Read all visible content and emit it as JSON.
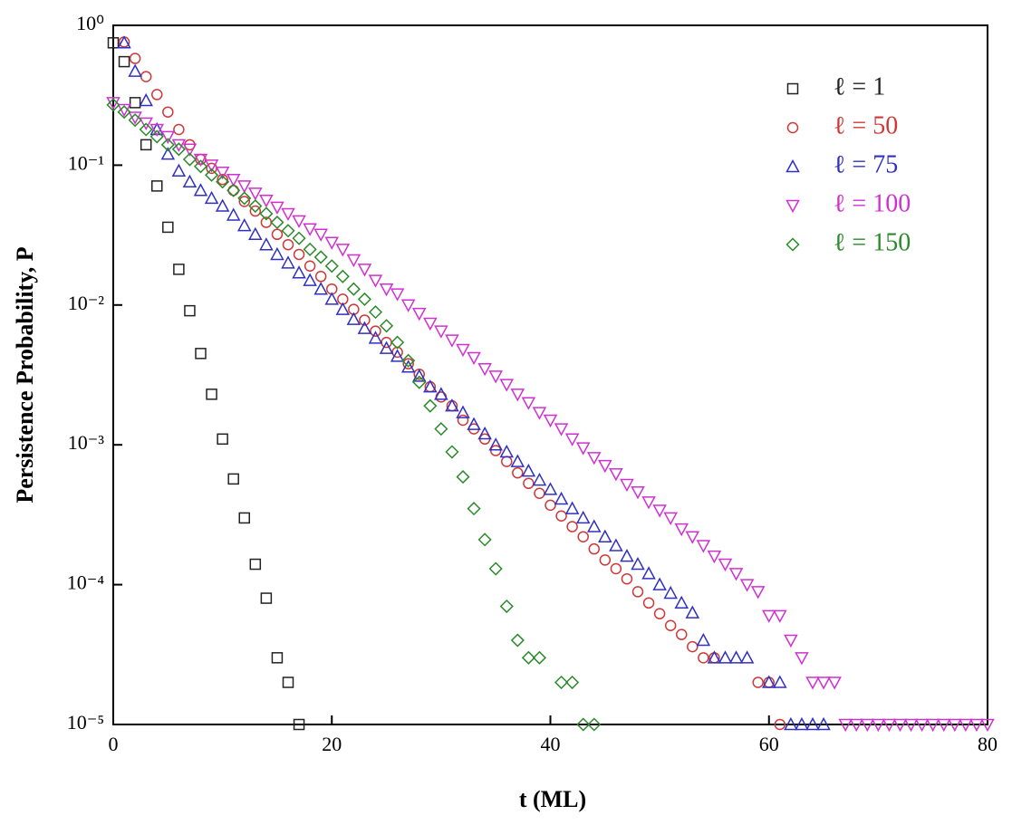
{
  "chart_data": {
    "type": "scatter",
    "xlabel": "t (ML)",
    "ylabel": "Persistence Probability, P",
    "xlim": [
      0,
      80
    ],
    "xticks": [
      0,
      20,
      40,
      60,
      80
    ],
    "ylim": [
      1e-05,
      1
    ],
    "ylog": true,
    "yticks": [
      {
        "value": 1,
        "label": "10⁰"
      },
      {
        "value": 0.1,
        "label": "10⁻¹"
      },
      {
        "value": 0.01,
        "label": "10⁻²"
      },
      {
        "value": 0.001,
        "label": "10⁻³"
      },
      {
        "value": 0.0001,
        "label": "10⁻⁴"
      },
      {
        "value": 1e-05,
        "label": "10⁻⁵"
      }
    ],
    "legend": "upper right",
    "series": [
      {
        "name": "ℓ = 1",
        "color": "#222222",
        "marker": "square",
        "x": [
          0,
          1,
          2,
          3,
          4,
          5,
          6,
          7,
          8,
          9,
          10,
          11,
          12,
          13,
          14,
          15,
          16,
          17
        ],
        "values": [
          0.75,
          0.55,
          0.28,
          0.14,
          0.071,
          0.036,
          0.018,
          0.0091,
          0.0045,
          0.0023,
          0.0011,
          0.00057,
          0.0003,
          0.00014,
          8e-05,
          3e-05,
          2e-05,
          1e-05
        ]
      },
      {
        "name": "ℓ = 50",
        "color": "#d03838",
        "marker": "circle",
        "x": [
          1,
          2,
          3,
          4,
          5,
          6,
          7,
          8,
          9,
          10,
          11,
          12,
          13,
          14,
          15,
          16,
          17,
          18,
          19,
          20,
          21,
          22,
          23,
          24,
          25,
          26,
          27,
          28,
          29,
          30,
          31,
          32,
          33,
          34,
          35,
          36,
          37,
          38,
          39,
          40,
          41,
          42,
          43,
          44,
          45,
          46,
          47,
          48,
          49,
          50,
          51,
          52,
          53,
          54,
          55,
          59,
          60,
          61
        ],
        "values": [
          0.76,
          0.58,
          0.43,
          0.32,
          0.24,
          0.18,
          0.14,
          0.11,
          0.095,
          0.079,
          0.066,
          0.055,
          0.047,
          0.039,
          0.032,
          0.027,
          0.023,
          0.019,
          0.016,
          0.013,
          0.011,
          0.0093,
          0.0078,
          0.0065,
          0.0054,
          0.0046,
          0.0038,
          0.0032,
          0.0026,
          0.0022,
          0.0019,
          0.0015,
          0.0013,
          0.0011,
          0.00091,
          0.00076,
          0.00063,
          0.00053,
          0.00045,
          0.00037,
          0.00031,
          0.00026,
          0.00022,
          0.00018,
          0.00015,
          0.00013,
          0.00011,
          8.9e-05,
          7.4e-05,
          6.2e-05,
          5.1e-05,
          4.4e-05,
          3.6e-05,
          3e-05,
          3e-05,
          2e-05,
          2e-05,
          1e-05
        ]
      },
      {
        "name": "ℓ = 75",
        "color": "#3030c0",
        "marker": "triangle",
        "x": [
          1,
          2,
          3,
          4,
          5,
          6,
          7,
          8,
          9,
          10,
          11,
          12,
          13,
          14,
          15,
          16,
          17,
          18,
          19,
          20,
          21,
          22,
          23,
          24,
          25,
          26,
          27,
          28,
          29,
          30,
          31,
          32,
          33,
          34,
          35,
          36,
          37,
          38,
          39,
          40,
          41,
          42,
          43,
          44,
          45,
          46,
          47,
          48,
          49,
          50,
          51,
          52,
          53,
          54,
          55,
          56,
          57,
          58,
          60,
          61,
          62,
          63,
          64,
          65
        ],
        "values": [
          0.75,
          0.47,
          0.29,
          0.18,
          0.12,
          0.091,
          0.076,
          0.066,
          0.058,
          0.051,
          0.044,
          0.037,
          0.032,
          0.027,
          0.023,
          0.02,
          0.017,
          0.015,
          0.013,
          0.011,
          0.0093,
          0.0079,
          0.0068,
          0.0058,
          0.0049,
          0.0043,
          0.0036,
          0.0031,
          0.0026,
          0.0023,
          0.0019,
          0.0017,
          0.0014,
          0.0012,
          0.001,
          0.00089,
          0.00076,
          0.00065,
          0.00056,
          0.00048,
          0.00041,
          0.00035,
          0.0003,
          0.00026,
          0.00022,
          0.00019,
          0.00016,
          0.00014,
          0.00012,
          0.0001,
          8.7e-05,
          7.4e-05,
          6.3e-05,
          4e-05,
          3e-05,
          3e-05,
          3e-05,
          3e-05,
          2e-05,
          2e-05,
          1e-05,
          1e-05,
          1e-05,
          1e-05
        ]
      },
      {
        "name": "ℓ = 100",
        "color": "#d030d0",
        "marker": "triangle-down",
        "x": [
          0,
          1,
          2,
          3,
          4,
          5,
          6,
          7,
          8,
          9,
          10,
          11,
          12,
          13,
          14,
          15,
          16,
          17,
          18,
          19,
          20,
          21,
          22,
          23,
          24,
          25,
          26,
          27,
          28,
          29,
          30,
          31,
          32,
          33,
          34,
          35,
          36,
          37,
          38,
          39,
          40,
          41,
          42,
          43,
          44,
          45,
          46,
          47,
          48,
          49,
          50,
          51,
          52,
          53,
          54,
          55,
          56,
          57,
          58,
          59,
          60,
          61,
          62,
          63,
          64,
          65,
          66,
          67,
          68,
          69,
          70,
          71,
          72,
          73,
          74,
          75,
          76,
          77,
          78,
          79,
          80
        ],
        "values": [
          0.28,
          0.25,
          0.22,
          0.2,
          0.18,
          0.16,
          0.14,
          0.13,
          0.11,
          0.1,
          0.089,
          0.079,
          0.071,
          0.063,
          0.056,
          0.05,
          0.045,
          0.04,
          0.035,
          0.032,
          0.028,
          0.025,
          0.021,
          0.018,
          0.015,
          0.013,
          0.012,
          0.01,
          0.0087,
          0.0074,
          0.0065,
          0.0056,
          0.0048,
          0.0042,
          0.0035,
          0.0031,
          0.0027,
          0.0023,
          0.002,
          0.0017,
          0.0015,
          0.0013,
          0.0011,
          0.00095,
          0.00081,
          0.00071,
          0.00062,
          0.00052,
          0.00046,
          0.00039,
          0.00034,
          0.0003,
          0.00025,
          0.00022,
          0.00019,
          0.00016,
          0.00014,
          0.00012,
          0.0001,
          8.9e-05,
          6e-05,
          6e-05,
          4e-05,
          3e-05,
          2e-05,
          2e-05,
          2e-05,
          1e-05,
          1e-05,
          1e-05,
          1e-05,
          1e-05,
          1e-05,
          1e-05,
          1e-05,
          1e-05,
          1e-05,
          1e-05,
          1e-05,
          1e-05,
          1e-05
        ]
      },
      {
        "name": "ℓ = 150",
        "color": "#2a8a2a",
        "marker": "diamond",
        "x": [
          0,
          1,
          2,
          3,
          4,
          5,
          6,
          7,
          8,
          9,
          10,
          11,
          12,
          13,
          14,
          15,
          16,
          17,
          18,
          19,
          20,
          21,
          22,
          23,
          24,
          25,
          26,
          27,
          28,
          29,
          30,
          31,
          32,
          33,
          34,
          35,
          36,
          37,
          38,
          39,
          41,
          42,
          43,
          44
        ],
        "values": [
          0.27,
          0.24,
          0.21,
          0.18,
          0.16,
          0.14,
          0.13,
          0.11,
          0.098,
          0.085,
          0.076,
          0.066,
          0.058,
          0.051,
          0.045,
          0.039,
          0.034,
          0.03,
          0.025,
          0.022,
          0.019,
          0.016,
          0.013,
          0.011,
          0.0089,
          0.0071,
          0.0054,
          0.004,
          0.0028,
          0.0019,
          0.0013,
          0.00089,
          0.00059,
          0.00035,
          0.00021,
          0.00013,
          7e-05,
          4e-05,
          3e-05,
          3e-05,
          2e-05,
          2e-05,
          1e-05,
          1e-05
        ]
      }
    ]
  }
}
